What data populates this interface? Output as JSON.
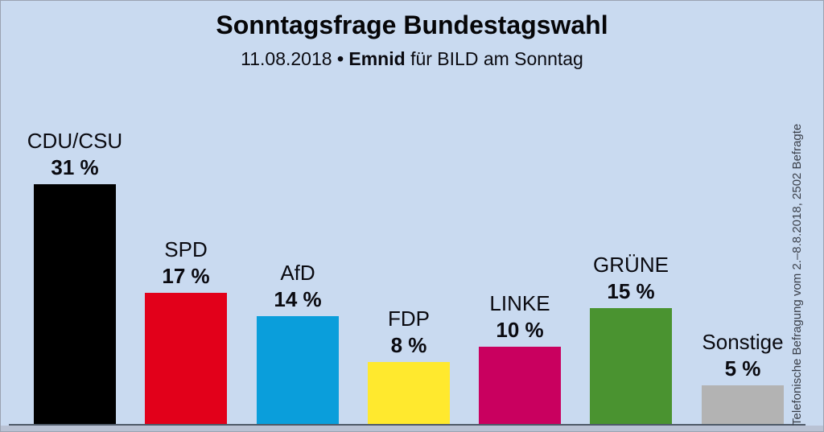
{
  "header": {
    "title": "Sonntagsfrage Bundestagswahl",
    "subtitle_date": "11.08.2018",
    "subtitle_bullet": "•",
    "subtitle_source": "Emnid",
    "subtitle_rest": "für BILD am Sonntag"
  },
  "side_note": "Telefonische Befragung vom 2.–8.8.2018, 2502 Befragte",
  "colors": {
    "background": "#c9daf0",
    "axis_line": "#4e5a68",
    "bottom_strip": "#b9c2d4",
    "label_text": "#0a0a10",
    "side_note_text": "#3a3f49"
  },
  "chart_data": {
    "type": "bar",
    "title": "Sonntagsfrage Bundestagswahl",
    "subtitle": "11.08.2018 • Emnid für BILD am Sonntag",
    "categories": [
      "CDU/CSU",
      "SPD",
      "AfD",
      "FDP",
      "LINKE",
      "GRÜNE",
      "Sonstige"
    ],
    "values": [
      31,
      17,
      14,
      8,
      10,
      15,
      5
    ],
    "value_labels": [
      "31 %",
      "17 %",
      "14 %",
      "8 %",
      "10 %",
      "15 %",
      "5 %"
    ],
    "bar_colors": [
      "#000000",
      "#e2001a",
      "#0a9edb",
      "#ffe92e",
      "#c9005f",
      "#4a9330",
      "#b3b3b3"
    ],
    "xlabel": "",
    "ylabel": "",
    "ylim": [
      0,
      33
    ],
    "grid": false,
    "legend": false,
    "data_labels_position": "above-bar"
  }
}
